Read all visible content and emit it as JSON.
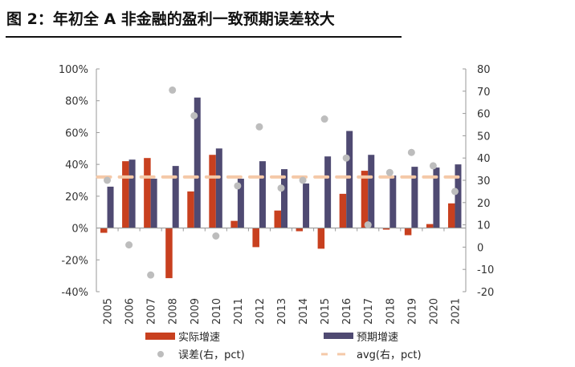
{
  "title": "图 2：年初全 A 非金融的盈利一致预期误差较大",
  "chart_data": {
    "type": "bar",
    "title": "图 2：年初全 A 非金融的盈利一致预期误差较大",
    "categories": [
      "2005",
      "2006",
      "2007",
      "2008",
      "2009",
      "2010",
      "2011",
      "2012",
      "2013",
      "2014",
      "2015",
      "2016",
      "2017",
      "2018",
      "2019",
      "2020",
      "2021"
    ],
    "series": [
      {
        "name": "实际增速",
        "type": "bar",
        "axis": "left",
        "color": "#c8401f",
        "values": [
          -3,
          42,
          44,
          -31.5,
          23,
          46,
          4.5,
          -12,
          11,
          -2,
          -13,
          21.5,
          36,
          -1,
          -4.5,
          2.5,
          15.5
        ]
      },
      {
        "name": "预期增速",
        "type": "bar",
        "axis": "left",
        "color": "#4f4a72",
        "values": [
          26,
          43,
          31,
          39,
          82,
          50,
          31,
          42,
          37,
          28,
          45,
          61,
          46,
          33,
          38.5,
          38,
          40
        ]
      },
      {
        "name": "误差(右，pct)",
        "type": "scatter",
        "axis": "right",
        "color": "#bdbdbd",
        "values": [
          30,
          1,
          -12.5,
          70.5,
          59,
          5,
          27.5,
          54,
          26.5,
          30,
          57.5,
          40,
          10,
          33.5,
          42.5,
          36.5,
          25
        ]
      },
      {
        "name": "avg(右，pct)",
        "type": "line-dashed",
        "axis": "right",
        "color": "#f5c9a8",
        "values": [
          31.5,
          31.5,
          31.5,
          31.5,
          31.5,
          31.5,
          31.5,
          31.5,
          31.5,
          31.5,
          31.5,
          31.5,
          31.5,
          31.5,
          31.5,
          31.5,
          31.5
        ]
      }
    ],
    "y_left": {
      "ylim": [
        -40,
        100
      ],
      "ticks": [
        "100%",
        "80%",
        "60%",
        "40%",
        "20%",
        "0%",
        "-20%",
        "-40%"
      ],
      "tick_values": [
        100,
        80,
        60,
        40,
        20,
        0,
        -20,
        -40
      ]
    },
    "y_right": {
      "ylim": [
        -20,
        80
      ],
      "ticks": [
        "80",
        "70",
        "60",
        "50",
        "40",
        "30",
        "20",
        "10",
        "0",
        "-10",
        "-20"
      ],
      "tick_values": [
        80,
        70,
        60,
        50,
        40,
        30,
        20,
        10,
        0,
        -10,
        -20
      ]
    },
    "grid": false,
    "legend": "bottom"
  }
}
